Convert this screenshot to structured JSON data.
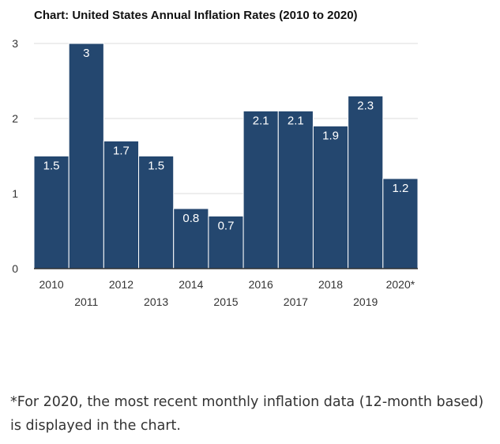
{
  "chart_data": {
    "type": "bar",
    "title": "Chart: United States Annual Inflation Rates (2010 to 2020)",
    "categories": [
      "2010",
      "2011",
      "2012",
      "2013",
      "2014",
      "2015",
      "2016",
      "2017",
      "2018",
      "2019",
      "2020*"
    ],
    "values": [
      1.5,
      3,
      1.7,
      1.5,
      0.8,
      0.7,
      2.1,
      2.1,
      1.9,
      2.3,
      1.2
    ],
    "value_labels": [
      "1.5",
      "3",
      "1.7",
      "1.5",
      "0.8",
      "0.7",
      "2.1",
      "2.1",
      "1.9",
      "2.3",
      "1.2"
    ],
    "xlabel": "",
    "ylabel": "",
    "ylim": [
      0,
      3
    ],
    "yticks": [
      0,
      1,
      2,
      3
    ],
    "grid": true,
    "bar_color": "#24476f",
    "grid_color": "#dddddd",
    "axis_color": "#333333",
    "label_color": "#ffffff"
  },
  "footnote": "*For 2020, the most recent monthly inflation data (12-month based) is displayed in the chart."
}
